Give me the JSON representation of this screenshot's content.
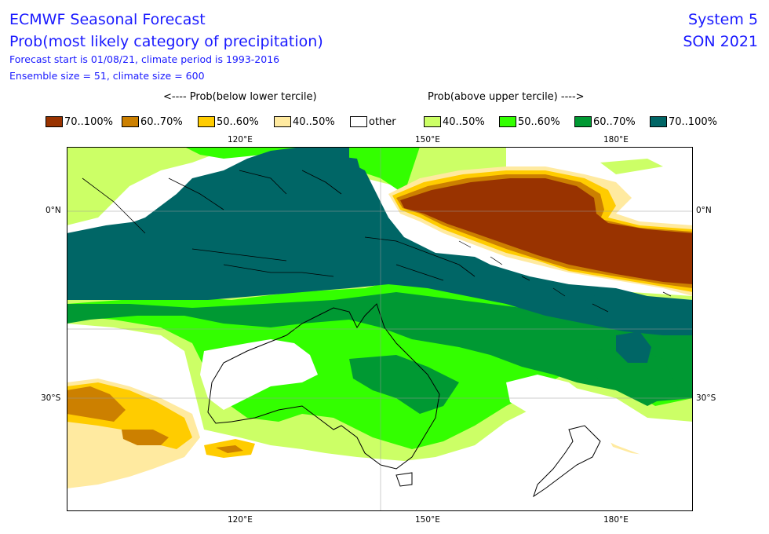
{
  "header": {
    "line1": "ECMWF Seasonal Forecast",
    "line2": "Prob(most likely category of precipitation)",
    "line3": "Forecast start is 01/08/21, climate period is 1993-2016",
    "line4": "Ensemble size = 51, climate size = 600",
    "system": "System 5",
    "season": "SON 2021"
  },
  "legend": {
    "below_label": "<---- Prob(below lower tercile)",
    "above_label": "Prob(above upper tercile) ---->",
    "items": [
      {
        "label": "70..100%",
        "color": "#993300"
      },
      {
        "label": "60..70%",
        "color": "#cc8000"
      },
      {
        "label": "50..60%",
        "color": "#ffcc00"
      },
      {
        "label": "40..50%",
        "color": "#ffeaa0"
      },
      {
        "label": "other",
        "color": "#ffffff"
      },
      {
        "label": "40..50%",
        "color": "#ccff66"
      },
      {
        "label": "50..60%",
        "color": "#33ff00"
      },
      {
        "label": "60..70%",
        "color": "#009933"
      },
      {
        "label": "70..100%",
        "color": "#006666"
      }
    ]
  },
  "axes": {
    "top_lon": [
      "120°E",
      "150°E",
      "180°E"
    ],
    "bottom_lon": [
      "120°E",
      "150°E",
      "180°E"
    ],
    "left_lat": [
      "0°N",
      "30°S"
    ],
    "right_lat": [
      "0°N",
      "30°S"
    ]
  }
}
